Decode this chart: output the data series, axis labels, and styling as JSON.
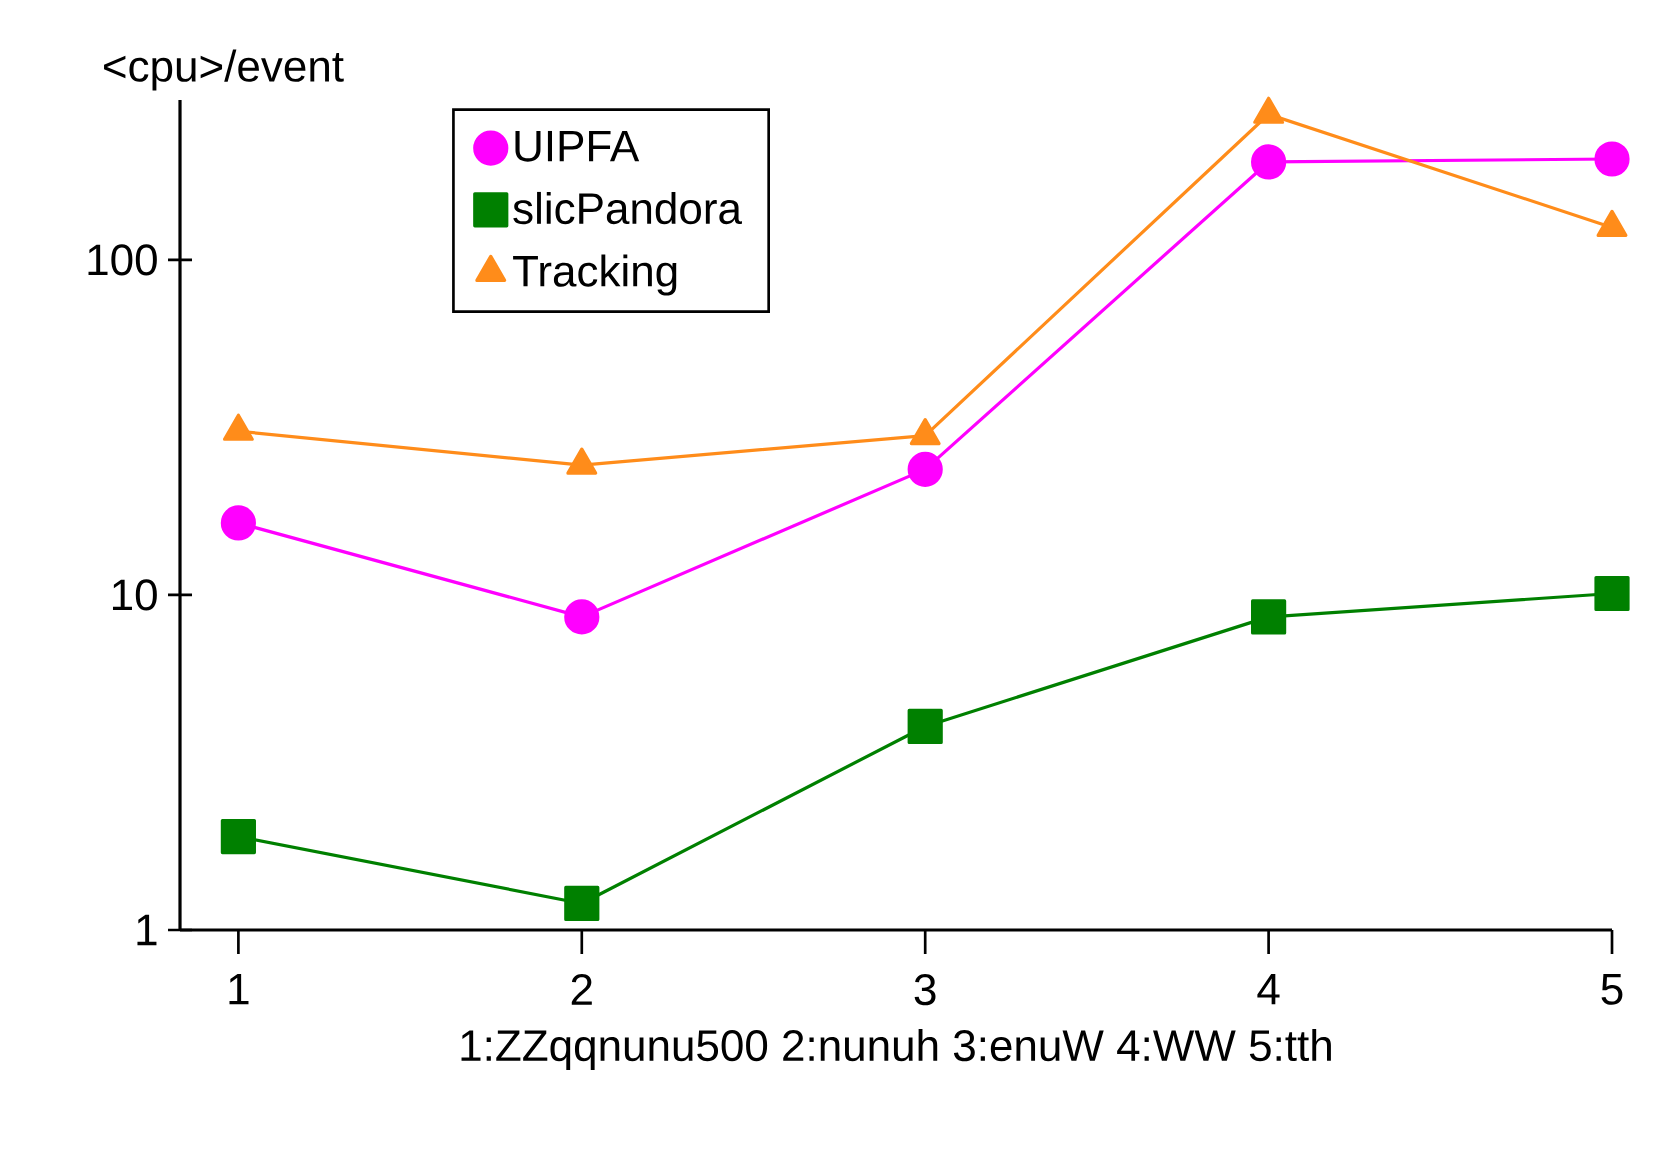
{
  "chart_data": {
    "type": "line",
    "ylabel": "<cpu>/event",
    "xlabel": "1:ZZqqnunu500  2:nunuh  3:enuW  4:WW  5:tth",
    "x": [
      1,
      2,
      3,
      4,
      5
    ],
    "series": [
      {
        "name": "UIPFA",
        "color": "#ff00ff",
        "marker": "circle",
        "values": [
          16.4,
          8.6,
          23.7,
          196,
          200
        ]
      },
      {
        "name": "slicPandora",
        "color": "#008000",
        "marker": "square",
        "values": [
          1.9,
          1.2,
          4.05,
          8.6,
          10.1
        ]
      },
      {
        "name": "Tracking",
        "color": "#ff8c1a",
        "marker": "triangle",
        "values": [
          30.8,
          24.4,
          29.9,
          272,
          125
        ]
      }
    ],
    "log": "y",
    "xlim": [
      0.83,
      5
    ],
    "ylim": [
      1,
      300
    ],
    "xticks": [
      1,
      2,
      3,
      4,
      5
    ],
    "yticks": [
      1,
      10,
      100
    ],
    "grid": false,
    "legend": "top left",
    "line_style": "solid"
  }
}
